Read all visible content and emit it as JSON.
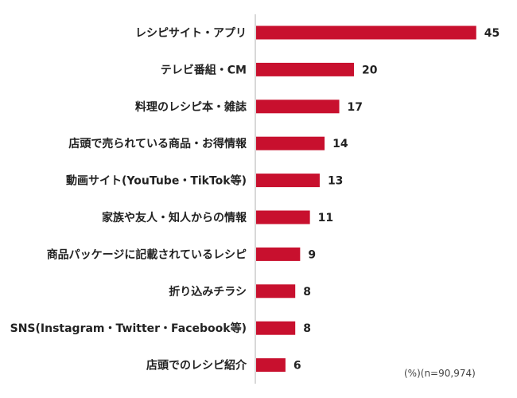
{
  "chart_data": {
    "type": "bar",
    "orientation": "horizontal",
    "categories": [
      "レシピサイト・アプリ",
      "テレビ番組・CM",
      "料理のレシピ本・雑誌",
      "店頭で売られている商品・お得情報",
      "動画サイト(YouTube・TikTok等)",
      "家族や友人・知人からの情報",
      "商品パッケージに記載されているレシピ",
      "折り込みチラシ",
      "SNS(Instagram・Twitter・Facebook等)",
      "店頭でのレシピ紹介"
    ],
    "values": [
      45,
      20,
      17,
      14,
      13,
      11,
      9,
      8,
      8,
      6
    ],
    "data_labels": true,
    "grid": false,
    "legend": "none",
    "bar_color": "#c8102e",
    "axis_color": "#b0b0b0"
  },
  "footnote": "(%)(n=90,974)"
}
